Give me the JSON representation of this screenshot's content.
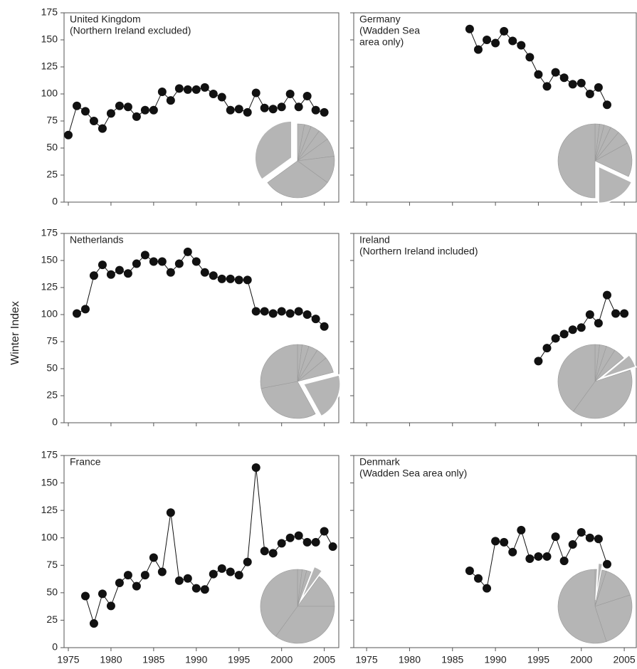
{
  "y_label": "Winter Index",
  "chart_data": [
    {
      "type": "line",
      "title": [
        "United Kingdom",
        "(Northern Ireland excluded)"
      ],
      "x": [
        1975,
        1976,
        1977,
        1978,
        1979,
        1980,
        1981,
        1982,
        1983,
        1984,
        1985,
        1986,
        1987,
        1988,
        1989,
        1990,
        1991,
        1992,
        1993,
        1994,
        1995,
        1996,
        1997,
        1998,
        1999,
        2000,
        2001,
        2002,
        2003,
        2004,
        2005
      ],
      "values": [
        62,
        89,
        84,
        75,
        68,
        82,
        89,
        88,
        79,
        85,
        85,
        102,
        94,
        105,
        104,
        104,
        106,
        100,
        97,
        85,
        86,
        83,
        101,
        87,
        86,
        88,
        100,
        88,
        98,
        85,
        83
      ],
      "color": "#111",
      "xlim": [
        1974.5,
        2006.7
      ],
      "ylim": [
        0,
        175
      ],
      "xticks": [
        1975,
        1980,
        1985,
        1990,
        1995,
        2000,
        2005
      ],
      "yticks": [
        0,
        25,
        50,
        75,
        100,
        125,
        150,
        175
      ],
      "show_xtick_labels": false,
      "show_ytick_labels": true,
      "inset_pie": {
        "values": [
          3,
          3,
          4,
          5,
          8,
          12,
          30,
          35
        ],
        "explode": 7,
        "color": "#b5b5b5"
      }
    },
    {
      "type": "line",
      "title": [
        "Germany",
        "(Wadden Sea",
        " area only)"
      ],
      "x": [
        1987,
        1988,
        1989,
        1990,
        1991,
        1992,
        1993,
        1994,
        1995,
        1996,
        1997,
        1998,
        1999,
        2000,
        2001,
        2002,
        2003
      ],
      "values": [
        160,
        141,
        150,
        147,
        158,
        149,
        145,
        134,
        118,
        107,
        120,
        115,
        109,
        110,
        100,
        106,
        90
      ],
      "color": "#111",
      "xlim": [
        1973.5,
        2006.4
      ],
      "ylim": [
        0,
        175
      ],
      "xticks": [
        1975,
        1980,
        1985,
        1990,
        1995,
        2000,
        2005
      ],
      "yticks": [
        0,
        25,
        50,
        75,
        100,
        125,
        150,
        175
      ],
      "show_xtick_labels": false,
      "show_ytick_labels": false,
      "inset_pie": {
        "values": [
          2,
          2,
          3,
          4,
          6,
          15,
          18,
          50
        ],
        "explode": 6,
        "color": "#b5b5b5"
      }
    },
    {
      "type": "line",
      "title": [
        "Netherlands"
      ],
      "x": [
        1976,
        1977,
        1978,
        1979,
        1980,
        1981,
        1982,
        1983,
        1984,
        1985,
        1986,
        1987,
        1988,
        1989,
        1990,
        1991,
        1992,
        1993,
        1994,
        1995,
        1996,
        1997,
        1998,
        1999,
        2000,
        2001,
        2002,
        2003,
        2004,
        2005
      ],
      "values": [
        101,
        105,
        136,
        146,
        137,
        141,
        138,
        147,
        155,
        149,
        149,
        139,
        147,
        158,
        149,
        139,
        136,
        133,
        133,
        132,
        132,
        103,
        103,
        101,
        103,
        101,
        103,
        100,
        96,
        89
      ],
      "color": "#111",
      "xlim": [
        1974.5,
        2006.7
      ],
      "ylim": [
        0,
        175
      ],
      "xticks": [
        1975,
        1980,
        1985,
        1990,
        1995,
        2000,
        2005
      ],
      "yticks": [
        0,
        25,
        50,
        75,
        100,
        125,
        150,
        175
      ],
      "show_xtick_labels": false,
      "show_ytick_labels": true,
      "inset_pie": {
        "values": [
          2,
          3,
          4,
          5,
          7,
          21,
          30,
          28
        ],
        "explode": 5,
        "color": "#b5b5b5"
      }
    },
    {
      "type": "line",
      "title": [
        "Ireland",
        "(Northern Ireland included)"
      ],
      "x": [
        1995,
        1996,
        1997,
        1998,
        1999,
        2000,
        2001,
        2002,
        2003,
        2004,
        2005
      ],
      "values": [
        57,
        69,
        78,
        82,
        86,
        88,
        100,
        92,
        118,
        101,
        101
      ],
      "color": "#111",
      "xlim": [
        1973.5,
        2006.4
      ],
      "ylim": [
        0,
        175
      ],
      "xticks": [
        1975,
        1980,
        1985,
        1990,
        1995,
        2000,
        2005
      ],
      "yticks": [
        0,
        25,
        50,
        75,
        100,
        125,
        150,
        175
      ],
      "show_xtick_labels": false,
      "show_ytick_labels": false,
      "inset_pie": {
        "values": [
          2,
          3,
          4,
          5,
          6,
          40,
          40
        ],
        "explode": 4,
        "color": "#b5b5b5"
      }
    },
    {
      "type": "line",
      "title": [
        "France"
      ],
      "x": [
        1977,
        1978,
        1979,
        1980,
        1981,
        1982,
        1983,
        1984,
        1985,
        1986,
        1987,
        1988,
        1989,
        1990,
        1991,
        1992,
        1993,
        1994,
        1995,
        1996,
        1997,
        1998,
        1999,
        2000,
        2001,
        2002,
        2003,
        2004,
        2005,
        2006
      ],
      "values": [
        47,
        22,
        49,
        38,
        59,
        66,
        56,
        66,
        82,
        69,
        123,
        61,
        63,
        54,
        53,
        67,
        72,
        69,
        66,
        78,
        164,
        88,
        86,
        95,
        100,
        102,
        96,
        96,
        106,
        92
      ],
      "color": "#111",
      "xlim": [
        1974.5,
        2006.7
      ],
      "ylim": [
        0,
        175
      ],
      "xticks": [
        1975,
        1980,
        1985,
        1990,
        1995,
        2000,
        2005
      ],
      "yticks": [
        0,
        25,
        50,
        75,
        100,
        125,
        150,
        175
      ],
      "show_xtick_labels": true,
      "show_ytick_labels": true,
      "inset_pie": {
        "values": [
          2,
          2,
          2,
          4,
          15,
          35,
          40
        ],
        "explode": 3,
        "color": "#b5b5b5"
      }
    },
    {
      "type": "line",
      "title": [
        "Denmark",
        "(Wadden Sea area only)"
      ],
      "x": [
        1987,
        1988,
        1989,
        1990,
        1991,
        1992,
        1993,
        1994,
        1995,
        1996,
        1997,
        1998,
        1999,
        2000,
        2001,
        2002,
        2003
      ],
      "values": [
        70,
        63,
        54,
        97,
        96,
        87,
        107,
        81,
        83,
        83,
        101,
        79,
        94,
        105,
        100,
        99,
        76
      ],
      "color": "#111",
      "xlim": [
        1973.5,
        2006.4
      ],
      "ylim": [
        0,
        175
      ],
      "xticks": [
        1975,
        1980,
        1985,
        1990,
        1995,
        2000,
        2005
      ],
      "yticks": [
        0,
        25,
        50,
        75,
        100,
        125,
        150,
        175
      ],
      "show_xtick_labels": true,
      "show_ytick_labels": false,
      "inset_pie": {
        "values": [
          1,
          2,
          2,
          15,
          25,
          55
        ],
        "explode": 1,
        "color": "#b5b5b5"
      }
    }
  ]
}
